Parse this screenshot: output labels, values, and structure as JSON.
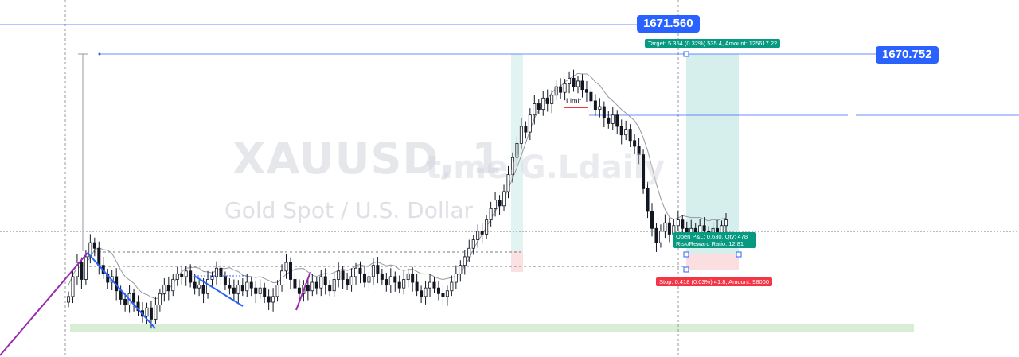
{
  "watermark": {
    "symbol": "XAUUSD, 1",
    "description": "Gold Spot / U.S. Dollar",
    "handle": "t.me/G.Ldaily"
  },
  "price_labels": {
    "upper": "1671.560",
    "target_line": "1670.752"
  },
  "position": {
    "target_text": "Target: 5.354 (0.32%) 535.4, Amount: 125617.22",
    "stop_text": "Stop: 0.418 (0.03%) 41.8, Amount: 98000",
    "pnl_text": "Open P&L: 0.630, Qty: 478",
    "rr_text": "Risk/Reward Ratio: 12.81",
    "target_color": "#089981",
    "stop_color": "#f23645"
  },
  "limit_label": "Limit",
  "colors": {
    "up": "#131722",
    "down": "#131722",
    "ma": "#9598a1",
    "drawing_blue": "#2962ff",
    "drawing_purple": "#9c27b0",
    "zone_green": "#d8efd6",
    "profit_zone": "#d6efed",
    "loss_zone": "#fbdedf",
    "hline": "#2962ff"
  },
  "chart_data": {
    "type": "candlestick",
    "symbol": "XAUUSD",
    "timeframe": "1",
    "y_markers": [
      1671.56,
      1670.752
    ],
    "closes": [
      1662.2,
      1662.9,
      1663.4,
      1662.8,
      1663.6,
      1664.1,
      1663.9,
      1663.3,
      1663.0,
      1662.7,
      1662.9,
      1662.4,
      1662.1,
      1661.9,
      1662.3,
      1662.0,
      1661.7,
      1661.5,
      1661.8,
      1661.4,
      1661.9,
      1662.3,
      1662.6,
      1662.4,
      1662.8,
      1663.0,
      1662.9,
      1663.1,
      1662.7,
      1662.5,
      1662.6,
      1662.3,
      1662.8,
      1662.9,
      1663.2,
      1662.9,
      1662.6,
      1662.5,
      1662.3,
      1662.6,
      1662.4,
      1662.7,
      1662.5,
      1662.3,
      1662.5,
      1662.2,
      1662.0,
      1662.2,
      1662.6,
      1663.1,
      1663.4,
      1662.8,
      1662.5,
      1662.3,
      1662.6,
      1662.4,
      1662.7,
      1662.5,
      1662.9,
      1662.6,
      1662.4,
      1662.8,
      1663.1,
      1662.8,
      1662.6,
      1662.9,
      1663.2,
      1663.0,
      1662.7,
      1662.9,
      1663.3,
      1663.0,
      1662.8,
      1662.6,
      1662.9,
      1662.7,
      1662.5,
      1662.8,
      1663.0,
      1662.7,
      1662.4,
      1662.2,
      1662.5,
      1662.7,
      1662.5,
      1662.3,
      1662.2,
      1662.4,
      1662.7,
      1663.0,
      1663.3,
      1663.6,
      1663.9,
      1664.2,
      1664.5,
      1664.4,
      1664.9,
      1665.3,
      1665.6,
      1665.4,
      1665.9,
      1666.5,
      1667.1,
      1667.6,
      1668.2,
      1668.0,
      1668.6,
      1669.0,
      1668.8,
      1669.2,
      1669.0,
      1669.3,
      1669.6,
      1669.4,
      1669.7,
      1669.9,
      1669.6,
      1669.8,
      1669.5,
      1669.4,
      1669.1,
      1668.8,
      1668.9,
      1668.5,
      1668.3,
      1668.6,
      1668.2,
      1667.9,
      1668.1,
      1667.7,
      1667.5,
      1667.2,
      1666.0,
      1665.2,
      1664.6,
      1664.1,
      1664.5,
      1664.8,
      1664.4,
      1664.7,
      1664.9,
      1664.6,
      1664.3,
      1664.6,
      1664.4,
      1664.7,
      1664.5,
      1664.3,
      1664.6,
      1664.4,
      1664.7,
      1664.9
    ]
  }
}
